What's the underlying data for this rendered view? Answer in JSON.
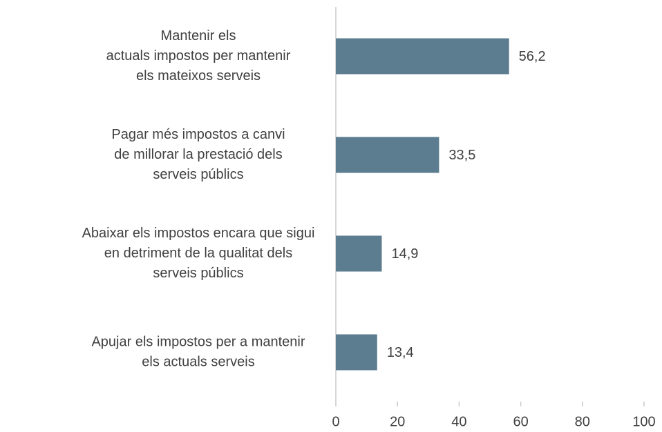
{
  "chart_data": {
    "type": "bar",
    "orientation": "horizontal",
    "categories": [
      [
        "Mantenir els",
        "actuals impostos per mantenir",
        "els mateixos serveis"
      ],
      [
        "Pagar més impostos a canvi",
        "de millorar la prestació dels",
        "serveis públics"
      ],
      [
        "Abaixar els impostos encara que sigui",
        "en detriment de la qualitat dels",
        "serveis públics"
      ],
      [
        "Apujar els impostos per a mantenir",
        "els actuals serveis"
      ]
    ],
    "values": [
      56.2,
      33.5,
      14.9,
      13.4
    ],
    "value_labels": [
      "56,2",
      "33,5",
      "14,9",
      "13,4"
    ],
    "color": "#5b7d8f",
    "xlim": [
      0,
      100
    ],
    "xticks": [
      0,
      20,
      40,
      60,
      80,
      100
    ],
    "grid": false
  }
}
